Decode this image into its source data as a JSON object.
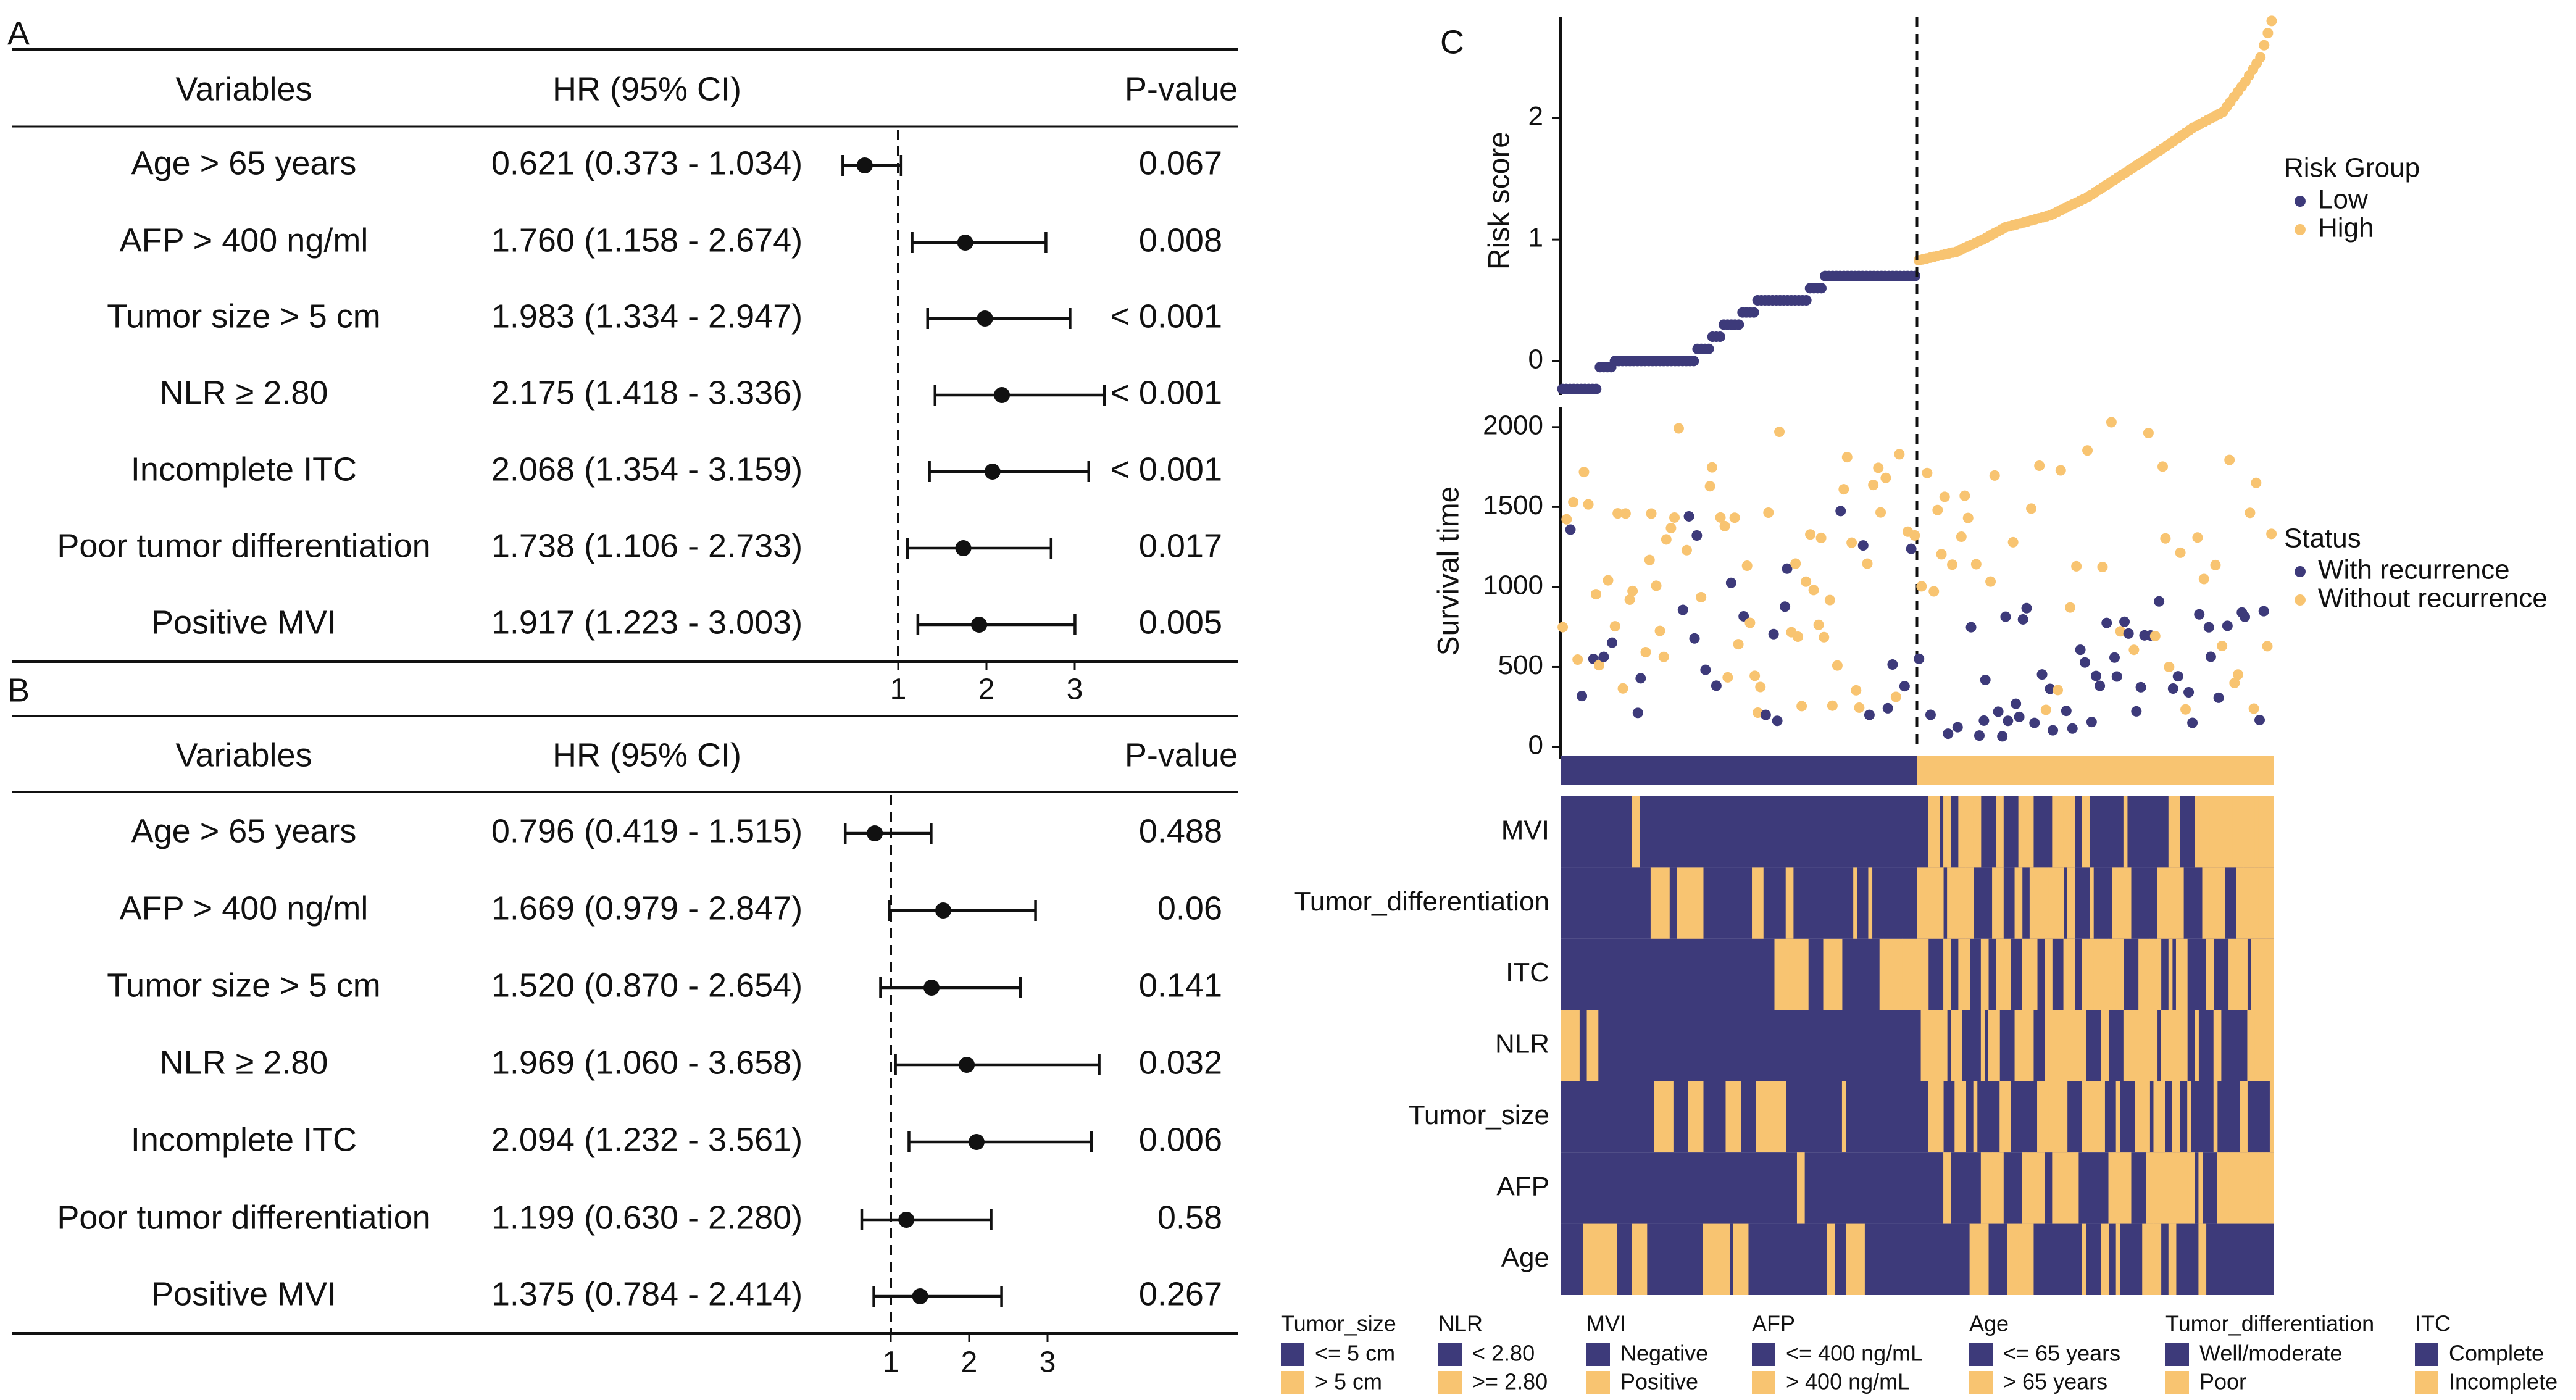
{
  "panels": [
    {
      "letter": "A",
      "headers": {
        "variables": "Variables",
        "hr": "HR (95% CI)",
        "p": "P-value"
      },
      "rows": [
        {
          "variable": "Age > 65 years",
          "hr_text": "0.621 (0.373 - 1.034)",
          "p": "0.067",
          "hr": 0.621,
          "lo": 0.373,
          "hi": 1.034
        },
        {
          "variable": "AFP > 400 ng/ml",
          "hr_text": "1.760 (1.158 - 2.674)",
          "p": "0.008",
          "hr": 1.76,
          "lo": 1.158,
          "hi": 2.674
        },
        {
          "variable": "Tumor size > 5 cm",
          "hr_text": "1.983 (1.334 - 2.947)",
          "p": "< 0.001",
          "hr": 1.983,
          "lo": 1.334,
          "hi": 2.947
        },
        {
          "variable": "NLR ≥ 2.80",
          "hr_text": "2.175 (1.418 - 3.336)",
          "p": "< 0.001",
          "hr": 2.175,
          "lo": 1.418,
          "hi": 3.336
        },
        {
          "variable": "Incomplete ITC",
          "hr_text": "2.068 (1.354 - 3.159)",
          "p": "< 0.001",
          "hr": 2.068,
          "lo": 1.354,
          "hi": 3.159
        },
        {
          "variable": "Poor tumor differentiation",
          "hr_text": "1.738 (1.106 - 2.733)",
          "p": "0.017",
          "hr": 1.738,
          "lo": 1.106,
          "hi": 2.733
        },
        {
          "variable": "Positive MVI",
          "hr_text": "1.917 (1.223 - 3.003)",
          "p": "0.005",
          "hr": 1.917,
          "lo": 1.223,
          "hi": 3.003
        }
      ],
      "ticks": [
        "1",
        "2",
        "3"
      ],
      "tick_values": [
        1,
        2,
        3
      ],
      "x_range": [
        0.4,
        3.6
      ]
    },
    {
      "letter": "B",
      "headers": {
        "variables": "Variables",
        "hr": "HR (95% CI)",
        "p": "P-value"
      },
      "rows": [
        {
          "variable": "Age > 65 years",
          "hr_text": "0.796 (0.419 - 1.515)",
          "p": "0.488",
          "hr": 0.796,
          "lo": 0.419,
          "hi": 1.515
        },
        {
          "variable": "AFP > 400 ng/ml",
          "hr_text": "1.669 (0.979 - 2.847)",
          "p": "0.06",
          "hr": 1.669,
          "lo": 0.979,
          "hi": 2.847
        },
        {
          "variable": "Tumor size > 5 cm",
          "hr_text": "1.520 (0.870 - 2.654)",
          "p": "0.141",
          "hr": 1.52,
          "lo": 0.87,
          "hi": 2.654
        },
        {
          "variable": "NLR ≥ 2.80",
          "hr_text": "1.969 (1.060 - 3.658)",
          "p": "0.032",
          "hr": 1.969,
          "lo": 1.06,
          "hi": 3.658
        },
        {
          "variable": "Incomplete ITC",
          "hr_text": "2.094 (1.232 - 3.561)",
          "p": "0.006",
          "hr": 2.094,
          "lo": 1.232,
          "hi": 3.561
        },
        {
          "variable": "Poor tumor differentiation",
          "hr_text": "1.199 (0.630 - 2.280)",
          "p": "0.58",
          "hr": 1.199,
          "lo": 0.63,
          "hi": 2.28
        },
        {
          "variable": "Positive MVI",
          "hr_text": "1.375 (0.784 - 2.414)",
          "p": "0.267",
          "hr": 1.375,
          "lo": 0.784,
          "hi": 2.414
        }
      ],
      "ticks": [
        "1",
        "2",
        "3"
      ],
      "tick_values": [
        1,
        2,
        3
      ],
      "x_range": [
        0.4,
        3.6
      ]
    }
  ],
  "panel_c": {
    "letter": "C",
    "n_patients": 190,
    "n_low": 95,
    "risk_axis": {
      "label": "Risk score",
      "ticks": [
        "0",
        "1",
        "2"
      ],
      "tick_values": [
        0,
        1,
        2
      ],
      "range": [
        -0.28,
        2.83
      ]
    },
    "survival_axis": {
      "label": "Survival time",
      "ticks": [
        "0",
        "500",
        "1000",
        "1500",
        "2000"
      ],
      "tick_values": [
        0,
        500,
        1000,
        1500,
        2000
      ],
      "range": [
        0,
        2200
      ]
    },
    "risk_legend": {
      "title": "Risk Group",
      "items": [
        "Low",
        "High"
      ]
    },
    "status_legend": {
      "title": "Status",
      "items": [
        "With recurrence",
        "Without recurrence"
      ]
    },
    "heatmap_rows": [
      "MVI",
      "Tumor_differentiation",
      "ITC",
      "NLR",
      "Tumor_size",
      "AFP",
      "Age"
    ],
    "legends": [
      {
        "title": "Tumor_size",
        "items": [
          "<= 5 cm",
          "> 5 cm"
        ]
      },
      {
        "title": "NLR",
        "items": [
          "< 2.80",
          ">= 2.80"
        ]
      },
      {
        "title": "MVI",
        "items": [
          "Negative",
          "Positive"
        ]
      },
      {
        "title": "AFP",
        "items": [
          "<= 400 ng/mL",
          "> 400 ng/mL"
        ]
      },
      {
        "title": "Age",
        "items": [
          "<= 65 years",
          "> 65 years"
        ]
      },
      {
        "title": "Tumor_differentiation",
        "items": [
          "Well/moderate",
          "Poor"
        ]
      },
      {
        "title": "ITC",
        "items": [
          "Complete",
          "Incomplete"
        ]
      }
    ]
  },
  "colors": {
    "low": "#3d3a7a",
    "high": "#f8c471",
    "ink": "#111111"
  },
  "chart_data": [
    {
      "type": "forest",
      "title": "A",
      "xlabel": "HR (95% CI)",
      "categories": [
        "Age > 65 years",
        "AFP > 400 ng/ml",
        "Tumor size > 5 cm",
        "NLR ≥ 2.80",
        "Incomplete ITC",
        "Poor tumor differentiation",
        "Positive MVI"
      ],
      "hr": [
        0.621,
        1.76,
        1.983,
        2.175,
        2.068,
        1.738,
        1.917
      ],
      "reference_line": 1
    },
    {
      "type": "forest",
      "title": "B",
      "xlabel": "HR (95% CI)",
      "categories": [
        "Age > 65 years",
        "AFP > 400 ng/ml",
        "Tumor size > 5 cm",
        "NLR ≥ 2.80",
        "Incomplete ITC",
        "Poor tumor differentiation",
        "Positive MVI"
      ],
      "hr": [
        0.796,
        1.669,
        1.52,
        1.969,
        2.094,
        1.199,
        1.375
      ],
      "reference_line": 1
    },
    {
      "type": "scatter",
      "title": "C",
      "ylabel": "Risk score",
      "series": [
        {
          "name": "Low"
        },
        {
          "name": "High"
        }
      ],
      "risk_steps": [
        {
          "rank": 0,
          "value": -0.23
        },
        {
          "rank": 10,
          "value": -0.05
        },
        {
          "rank": 14,
          "value": 0.0
        },
        {
          "rank": 36,
          "value": 0.1
        },
        {
          "rank": 40,
          "value": 0.2
        },
        {
          "rank": 43,
          "value": 0.3
        },
        {
          "rank": 48,
          "value": 0.4
        },
        {
          "rank": 52,
          "value": 0.5
        },
        {
          "rank": 66,
          "value": 0.6
        },
        {
          "rank": 70,
          "value": 0.7
        },
        {
          "rank": 95,
          "value": 0.83
        },
        {
          "rank": 105,
          "value": 0.9
        },
        {
          "rank": 112,
          "value": 1.0
        },
        {
          "rank": 118,
          "value": 1.1
        },
        {
          "rank": 130,
          "value": 1.2
        },
        {
          "rank": 140,
          "value": 1.35
        },
        {
          "rank": 150,
          "value": 1.55
        },
        {
          "rank": 160,
          "value": 1.75
        },
        {
          "rank": 168,
          "value": 1.92
        },
        {
          "rank": 176,
          "value": 2.05
        },
        {
          "rank": 182,
          "value": 2.3
        },
        {
          "rank": 186,
          "value": 2.5
        },
        {
          "rank": 189,
          "value": 2.8
        }
      ],
      "risk_cutoff_rank": 95
    }
  ]
}
